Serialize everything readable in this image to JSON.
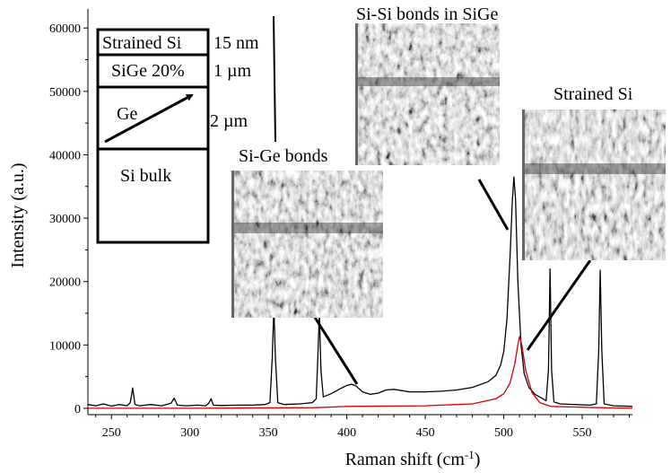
{
  "chart_data": {
    "type": "line",
    "xlabel": "Raman shift (cm",
    "xlabel_sup": "-1",
    "xlabel_end": ")",
    "ylabel": "Intensity (a.u.)",
    "xlim": [
      235,
      582
    ],
    "ylim": [
      -1000,
      63000
    ],
    "x_ticks": [
      250,
      300,
      350,
      400,
      450,
      500,
      550
    ],
    "y_ticks": [
      0,
      10000,
      20000,
      30000,
      40000,
      50000,
      60000
    ],
    "series": [
      {
        "color": "#000000",
        "points": [
          [
            235,
            600
          ],
          [
            240,
            400
          ],
          [
            245,
            700
          ],
          [
            250,
            350
          ],
          [
            255,
            600
          ],
          [
            260,
            400
          ],
          [
            262,
            900
          ],
          [
            263.5,
            3200
          ],
          [
            265,
            600
          ],
          [
            268,
            400
          ],
          [
            275,
            600
          ],
          [
            282,
            400
          ],
          [
            288,
            800
          ],
          [
            290,
            1600
          ],
          [
            292,
            500
          ],
          [
            298,
            400
          ],
          [
            305,
            500
          ],
          [
            310,
            400
          ],
          [
            312,
            800
          ],
          [
            313.5,
            1500
          ],
          [
            315,
            500
          ],
          [
            320,
            450
          ],
          [
            330,
            500
          ],
          [
            340,
            500
          ],
          [
            348,
            600
          ],
          [
            351,
            900
          ],
          [
            352.5,
            8000
          ],
          [
            353.5,
            16000
          ],
          [
            354.5,
            8000
          ],
          [
            356,
            900
          ],
          [
            360,
            600
          ],
          [
            370,
            700
          ],
          [
            378,
            900
          ],
          [
            380.5,
            1500
          ],
          [
            381.5,
            8000
          ],
          [
            382.5,
            15000
          ],
          [
            383.5,
            6000
          ],
          [
            385,
            1800
          ],
          [
            390,
            2300
          ],
          [
            395,
            3000
          ],
          [
            400,
            3600
          ],
          [
            403,
            3800
          ],
          [
            406,
            3500
          ],
          [
            410,
            2600
          ],
          [
            415,
            2200
          ],
          [
            420,
            2400
          ],
          [
            425,
            2900
          ],
          [
            430,
            3000
          ],
          [
            435,
            2800
          ],
          [
            440,
            2600
          ],
          [
            450,
            2600
          ],
          [
            460,
            2700
          ],
          [
            470,
            2900
          ],
          [
            480,
            3300
          ],
          [
            490,
            4200
          ],
          [
            495,
            5200
          ],
          [
            498,
            6800
          ],
          [
            500,
            9000
          ],
          [
            502,
            14000
          ],
          [
            504,
            24000
          ],
          [
            505.5,
            33000
          ],
          [
            506.5,
            36500
          ],
          [
            507.5,
            33000
          ],
          [
            509,
            20000
          ],
          [
            511,
            10000
          ],
          [
            513,
            5500
          ],
          [
            516,
            3300
          ],
          [
            520,
            2200
          ],
          [
            525,
            1500
          ],
          [
            527,
            1200
          ],
          [
            528.5,
            6000
          ],
          [
            529.5,
            22000
          ],
          [
            530.5,
            6000
          ],
          [
            532,
            1000
          ],
          [
            536,
            700
          ],
          [
            545,
            600
          ],
          [
            555,
            500
          ],
          [
            559,
            700
          ],
          [
            560.5,
            9000
          ],
          [
            561.5,
            21800
          ],
          [
            562.5,
            9000
          ],
          [
            564,
            700
          ],
          [
            570,
            400
          ],
          [
            582,
            300
          ]
        ]
      },
      {
        "color": "#d40000",
        "points": [
          [
            235,
            0
          ],
          [
            300,
            0
          ],
          [
            380,
            100
          ],
          [
            400,
            300
          ],
          [
            450,
            400
          ],
          [
            480,
            700
          ],
          [
            495,
            1500
          ],
          [
            500,
            2300
          ],
          [
            504,
            4000
          ],
          [
            507,
            7000
          ],
          [
            509,
            10000
          ],
          [
            510,
            11300
          ],
          [
            511.5,
            10000
          ],
          [
            514,
            6000
          ],
          [
            518,
            2500
          ],
          [
            523,
            900
          ],
          [
            530,
            300
          ],
          [
            560,
            100
          ],
          [
            582,
            0
          ]
        ]
      }
    ],
    "annotations": {
      "si_ge_bonds": "Si-Ge bonds",
      "si_si_sige": "Si-Si bonds in SiGe",
      "strained_si": "Strained Si"
    }
  },
  "layer_stack": {
    "layers": [
      "Strained Si",
      "SiGe 20%",
      "Ge",
      "Si bulk"
    ],
    "thicknesses": [
      "15 nm",
      "1 µm",
      "2 µm"
    ]
  },
  "colors": {
    "black_spectrum": "#000000",
    "red_spectrum": "#d40000"
  }
}
